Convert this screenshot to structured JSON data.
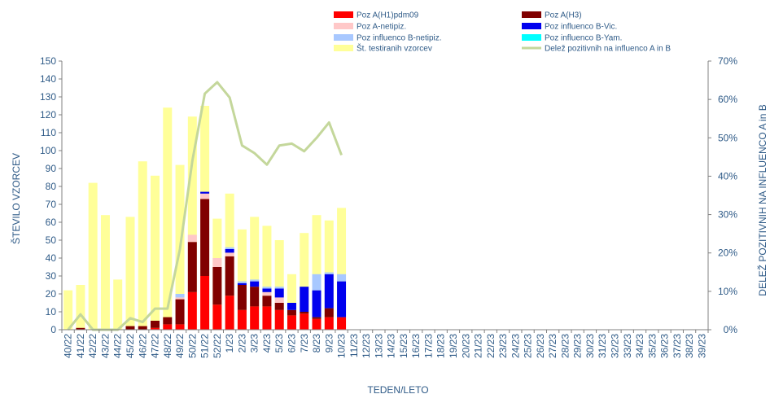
{
  "chart_data": {
    "type": "bar",
    "stacked": true,
    "xlabel": "TEDEN/LETO",
    "ylabel": "ŠTEVILO VZORCEV",
    "y2label": "DELEŽ POZITIVNIH  NA INFLUENCO  A in B",
    "ylim": [
      0,
      150
    ],
    "y_ticks": [
      0,
      10,
      20,
      30,
      40,
      50,
      60,
      70,
      80,
      90,
      100,
      110,
      120,
      130,
      140,
      150
    ],
    "y2lim": [
      0,
      70
    ],
    "y2_ticks": [
      "0%",
      "10%",
      "20%",
      "30%",
      "40%",
      "50%",
      "60%",
      "70%"
    ],
    "legend_position": "top",
    "categories": [
      "40/22",
      "41/22",
      "42/22",
      "43/22",
      "44/22",
      "45/22",
      "46/22",
      "47/22",
      "48/22",
      "49/22",
      "50/22",
      "51/22",
      "52/22",
      "1/23",
      "2/23",
      "3/23",
      "4/23",
      "5/23",
      "6/23",
      "7/23",
      "8/23",
      "9/23",
      "10/23",
      "11/23",
      "12/23",
      "13/23",
      "14/23",
      "15/23",
      "16/23",
      "17/23",
      "18/23",
      "19/23",
      "20/23",
      "21/23",
      "22/23",
      "23/23",
      "24/23",
      "25/23",
      "26/23",
      "27/23",
      "28/23",
      "29/23",
      "30/23",
      "31/23",
      "32/23",
      "33/23",
      "34/23",
      "35/23",
      "36/23",
      "37/23",
      "38/23",
      "39/23"
    ],
    "series": [
      {
        "name": "Poz A(H1)pdm09",
        "color": "#ff0000",
        "kind": "bar",
        "values": [
          0,
          0,
          0,
          0,
          0,
          0,
          0,
          1,
          3,
          3,
          21,
          30,
          14,
          19,
          11,
          13,
          13,
          11,
          8,
          9,
          6,
          7,
          7,
          0,
          0,
          0,
          0,
          0,
          0,
          0,
          0,
          0,
          0,
          0,
          0,
          0,
          0,
          0,
          0,
          0,
          0,
          0,
          0,
          0,
          0,
          0,
          0,
          0,
          0,
          0,
          0,
          0
        ]
      },
      {
        "name": "Poz A(H3)",
        "color": "#800000",
        "kind": "bar",
        "values": [
          0,
          1,
          0,
          0,
          0,
          2,
          2,
          4,
          4,
          14,
          28,
          43,
          21,
          22,
          14,
          11,
          6,
          4,
          3,
          1,
          1,
          5,
          0,
          0,
          0,
          0,
          0,
          0,
          0,
          0,
          0,
          0,
          0,
          0,
          0,
          0,
          0,
          0,
          0,
          0,
          0,
          0,
          0,
          0,
          0,
          0,
          0,
          0,
          0,
          0,
          0,
          0
        ]
      },
      {
        "name": "Poz A-netipiz.",
        "color": "#ffc8c8",
        "kind": "bar",
        "values": [
          0,
          0,
          0,
          0,
          0,
          0,
          0,
          0,
          0,
          1,
          4,
          3,
          5,
          2,
          0,
          0,
          2,
          3,
          0,
          0,
          0,
          0,
          0,
          0,
          0,
          0,
          0,
          0,
          0,
          0,
          0,
          0,
          0,
          0,
          0,
          0,
          0,
          0,
          0,
          0,
          0,
          0,
          0,
          0,
          0,
          0,
          0,
          0,
          0,
          0,
          0,
          0
        ]
      },
      {
        "name": "Poz influenco B-Vic.",
        "color": "#0000ee",
        "kind": "bar",
        "values": [
          0,
          0,
          0,
          0,
          0,
          0,
          0,
          0,
          0,
          0,
          0,
          1,
          0,
          2,
          1,
          3,
          2,
          5,
          4,
          14,
          15,
          19,
          20,
          0,
          0,
          0,
          0,
          0,
          0,
          0,
          0,
          0,
          0,
          0,
          0,
          0,
          0,
          0,
          0,
          0,
          0,
          0,
          0,
          0,
          0,
          0,
          0,
          0,
          0,
          0,
          0,
          0
        ]
      },
      {
        "name": "Poz influenco B-netipiz.",
        "color": "#a8c8ff",
        "kind": "bar",
        "values": [
          0,
          0,
          0,
          0,
          0,
          0,
          0,
          0,
          0,
          2,
          0,
          0,
          0,
          1,
          1,
          1,
          1,
          1,
          0,
          0,
          9,
          1,
          4,
          0,
          0,
          0,
          0,
          0,
          0,
          0,
          0,
          0,
          0,
          0,
          0,
          0,
          0,
          0,
          0,
          0,
          0,
          0,
          0,
          0,
          0,
          0,
          0,
          0,
          0,
          0,
          0,
          0
        ]
      },
      {
        "name": "Poz influenco B-Yam.",
        "color": "#00ffff",
        "kind": "bar",
        "values": [
          0,
          0,
          0,
          0,
          0,
          0,
          0,
          0,
          0,
          0,
          0,
          0,
          0,
          0,
          0,
          0,
          0,
          0,
          0,
          0,
          0,
          0,
          0,
          0,
          0,
          0,
          0,
          0,
          0,
          0,
          0,
          0,
          0,
          0,
          0,
          0,
          0,
          0,
          0,
          0,
          0,
          0,
          0,
          0,
          0,
          0,
          0,
          0,
          0,
          0,
          0,
          0
        ]
      },
      {
        "name": "Št. testiranih vzorcev",
        "color": "#ffff99",
        "kind": "total",
        "values": [
          22,
          25,
          82,
          64,
          28,
          63,
          94,
          86,
          124,
          92,
          119,
          125,
          62,
          76,
          56,
          63,
          58,
          50,
          31,
          54,
          64,
          61,
          68,
          null,
          null,
          null,
          null,
          null,
          null,
          null,
          null,
          null,
          null,
          null,
          null,
          null,
          null,
          null,
          null,
          null,
          null,
          null,
          null,
          null,
          null,
          null,
          null,
          null,
          null,
          null,
          null,
          null
        ]
      },
      {
        "name": "Delež pozitivnih na influenco A in B",
        "color": "#c4d79b",
        "kind": "line",
        "axis": "y2",
        "values": [
          0,
          4,
          0,
          0,
          0,
          3,
          2,
          5.5,
          5.5,
          21,
          44,
          61.5,
          64.5,
          60.5,
          48,
          46,
          43,
          48,
          48.5,
          46.5,
          50,
          54,
          45.5,
          null,
          null,
          null,
          null,
          null,
          null,
          null,
          null,
          null,
          null,
          null,
          null,
          null,
          null,
          null,
          null,
          null,
          null,
          null,
          null,
          null,
          null,
          null,
          null,
          null,
          null,
          null,
          null,
          null
        ]
      }
    ]
  }
}
